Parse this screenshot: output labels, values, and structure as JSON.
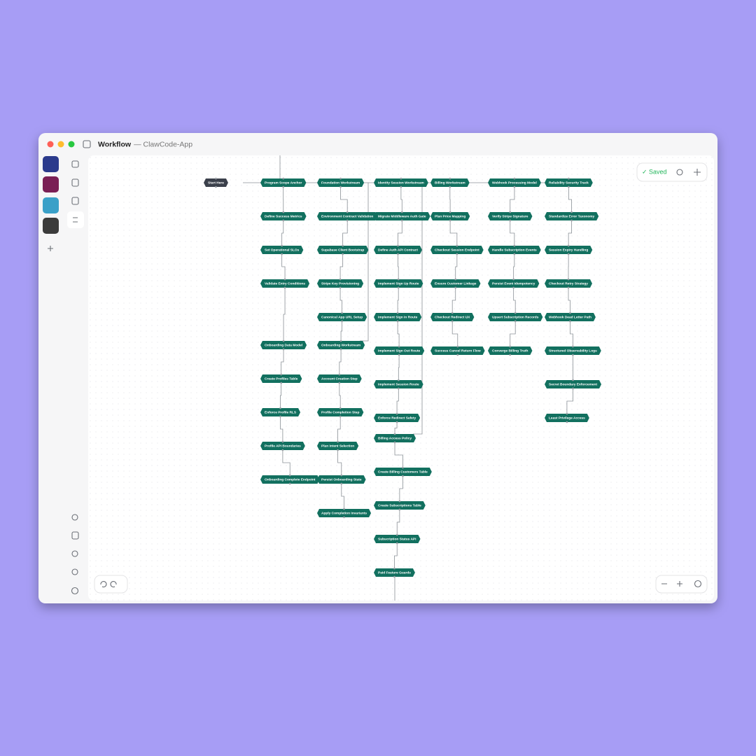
{
  "header": {
    "title": "Workflow",
    "subtitle": "— ClawCode-App"
  },
  "status": "✓ Saved",
  "start": "Start Here",
  "columns": [
    [
      "Program Scope Anchor",
      "Define Success Metrics",
      "Set Operational SLOs",
      "Validate Entry Conditions",
      "Onboarding Data Model",
      "Create Profiles Table",
      "Enforce Profile RLS",
      "Profile API Boundaries",
      "Onboarding Complete Endpoint"
    ],
    [
      "Foundation Workstream",
      "Environment Contract Validation",
      "Supabase Client Bootstrap",
      "Stripe Key Provisioning",
      "Canonical App URL Setup",
      "Onboarding Workstream",
      "Account Creation Step",
      "Profile Completion Step",
      "Plan Intent Selection",
      "Persist Onboarding State",
      "Apply Completion Invariants"
    ],
    [
      "Identity Session Workstream",
      "Migrate Middleware Auth Gate",
      "Define Auth API Contract",
      "Implement Sign Up Route",
      "Implement Sign In Route",
      "Implement Sign Out Route",
      "Implement Session Route",
      "Enforce Redirect Safety",
      "Billing Access Policy",
      "Create Billing Customers Table",
      "Create Subscriptions Table",
      "Subscription Status API",
      "Paid Feature Guards"
    ],
    [
      "Billing Workstream",
      "Plan Price Mapping",
      "Checkout Session Endpoint",
      "Ensure Customer Linkage",
      "Checkout Redirect UX",
      "Success Cancel Return Flow"
    ],
    [
      "Webhook Processing Model",
      "Verify Stripe Signature",
      "Handle Subscription Events",
      "Persist Event Idempotency",
      "Upsert Subscription Records",
      "Converge Billing Truth"
    ],
    [
      "Reliability Security Track",
      "Standardize Error Taxonomy",
      "Session Expiry Handling",
      "Checkout Retry Strategy",
      "Webhook Dead Letter Path",
      "Structured Observability Logs",
      "Secret Boundary Enforcement",
      "Least Privilege Access"
    ]
  ]
}
